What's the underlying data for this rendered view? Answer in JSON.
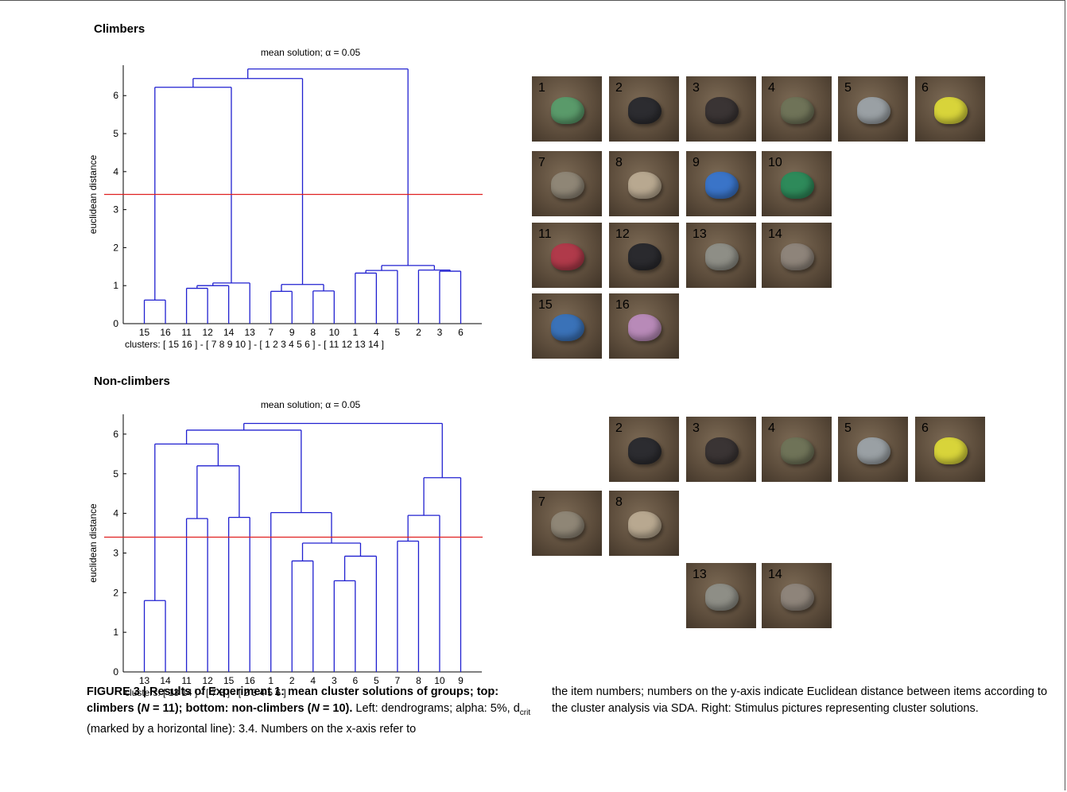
{
  "panels": [
    {
      "id": "climbers",
      "heading": "Climbers",
      "chart_data": {
        "type": "dendrogram",
        "title": "mean solution; α = 0.05",
        "ylabel": "euclidean distance",
        "ylim": [
          0,
          6.8
        ],
        "yticks": [
          0,
          1,
          2,
          3,
          4,
          5,
          6
        ],
        "threshold": 3.4,
        "threshold_color": "#e02020",
        "line_color": "#2020d0",
        "leaf_order": [
          "15",
          "16",
          "11",
          "12",
          "14",
          "13",
          "7",
          "9",
          "8",
          "10",
          "1",
          "4",
          "5",
          "2",
          "3",
          "6"
        ],
        "merges": [
          {
            "left": "15",
            "right": "16",
            "height": 0.62
          },
          {
            "left": "11",
            "right": "12",
            "height": 0.93
          },
          {
            "left": "(11,12)",
            "right": "14",
            "height": 1.0
          },
          {
            "left": "(11,12,14)",
            "right": "13",
            "height": 1.07
          },
          {
            "left": "7",
            "right": "9",
            "height": 0.85
          },
          {
            "left": "8",
            "right": "10",
            "height": 0.86
          },
          {
            "left": "(7,9)",
            "right": "(8,10)",
            "height": 1.03
          },
          {
            "left": "1",
            "right": "4",
            "height": 1.33
          },
          {
            "left": "(1,4)",
            "right": "5",
            "height": 1.4
          },
          {
            "left": "3",
            "right": "6",
            "height": 1.38
          },
          {
            "left": "2",
            "right": "(3,6)",
            "height": 1.41
          },
          {
            "left": "(1,4,5)",
            "right": "(2,3,6)",
            "height": 1.53
          },
          {
            "left": "(15,16)",
            "right": "(11,12,14,13)",
            "height": 6.22
          },
          {
            "left": "(15,16,11,12,14,13)",
            "right": "(7,9,8,10)",
            "height": 6.45
          },
          {
            "left": "(15..13,7..10)",
            "right": "(1..6)",
            "height": 6.7
          }
        ],
        "clusters_label": "clusters: [ 15  16 ]   -   [ 7   8   9  10 ]   -   [ 1  2  3  4  5  6 ]   -   [ 11  12  13  14 ]"
      }
    },
    {
      "id": "non-climbers",
      "heading": "Non-climbers",
      "chart_data": {
        "type": "dendrogram",
        "title": "mean solution; α = 0.05",
        "ylabel": "euclidean distance",
        "ylim": [
          0,
          6.5
        ],
        "yticks": [
          0,
          1,
          2,
          3,
          4,
          5,
          6
        ],
        "threshold": 3.4,
        "threshold_color": "#e02020",
        "line_color": "#2020d0",
        "leaf_order": [
          "13",
          "14",
          "11",
          "12",
          "15",
          "16",
          "1",
          "2",
          "4",
          "3",
          "6",
          "5",
          "7",
          "8",
          "10",
          "9"
        ],
        "merges": [
          {
            "left": "13",
            "right": "14",
            "height": 1.8
          },
          {
            "left": "11",
            "right": "12",
            "height": 3.87
          },
          {
            "left": "15",
            "right": "16",
            "height": 3.9
          },
          {
            "left": "(11,12)",
            "right": "(15,16)",
            "height": 5.2
          },
          {
            "left": "(13,14)",
            "right": "(11,12,15,16)",
            "height": 5.75
          },
          {
            "left": "2",
            "right": "4",
            "height": 2.8
          },
          {
            "left": "3",
            "right": "6",
            "height": 2.3
          },
          {
            "left": "(3,6)",
            "right": "5",
            "height": 2.92
          },
          {
            "left": "(2,4)",
            "right": "(3,6,5)",
            "height": 3.25
          },
          {
            "left": "1",
            "right": "(2,4,3,6,5)",
            "height": 4.02
          },
          {
            "left": "7",
            "right": "8",
            "height": 3.3
          },
          {
            "left": "(7,8)",
            "right": "10",
            "height": 3.95
          },
          {
            "left": "(7,8,10)",
            "right": "9",
            "height": 4.9
          },
          {
            "left": "(13..16)",
            "right": "(1..5)",
            "height": 6.1
          },
          {
            "left": "(13..5)",
            "right": "(7..9)",
            "height": 6.27
          }
        ],
        "clusters_label": "clusters: [ 13  14 ]   -   [ 7  8 ]   -   [ 2  3  4  5  6 ]"
      }
    }
  ],
  "stimuli_climbers": [
    {
      "num": "1",
      "hold_color": "#5a9a6a"
    },
    {
      "num": "2",
      "hold_color": "#2c2c30"
    },
    {
      "num": "3",
      "hold_color": "#3a3434"
    },
    {
      "num": "4",
      "hold_color": "#6f7358"
    },
    {
      "num": "5",
      "hold_color": "#9aa0a4"
    },
    {
      "num": "6",
      "hold_color": "#d8d43a"
    },
    {
      "num": "7",
      "hold_color": "#8f8676"
    },
    {
      "num": "8",
      "hold_color": "#b8a890"
    },
    {
      "num": "9",
      "hold_color": "#3a74c8"
    },
    {
      "num": "10",
      "hold_color": "#2e8a5a"
    },
    {
      "num": "11",
      "hold_color": "#b03a4a"
    },
    {
      "num": "12",
      "hold_color": "#2a2a2e"
    },
    {
      "num": "13",
      "hold_color": "#8e8e86"
    },
    {
      "num": "14",
      "hold_color": "#8e847a"
    },
    {
      "num": "15",
      "hold_color": "#3a72b8"
    },
    {
      "num": "16",
      "hold_color": "#b88ab8"
    }
  ],
  "stimuli_nonclimbers": [
    {
      "num": "2",
      "hold_color": "#2c2c30"
    },
    {
      "num": "3",
      "hold_color": "#3a3434"
    },
    {
      "num": "4",
      "hold_color": "#6f7358"
    },
    {
      "num": "5",
      "hold_color": "#9aa0a4"
    },
    {
      "num": "6",
      "hold_color": "#d8d43a"
    },
    {
      "num": "7",
      "hold_color": "#8f8676"
    },
    {
      "num": "8",
      "hold_color": "#b8a890"
    },
    {
      "num": "13",
      "hold_color": "#8e8e86"
    },
    {
      "num": "14",
      "hold_color": "#8e847a"
    }
  ],
  "caption": {
    "fig_label": "FIGURE 3 | Results of Experiment 1: mean cluster solutions of groups; top: climbers (",
    "n1_symbol": "N",
    "n1_rest": " = 11); bottom: non-climbers (",
    "n2_symbol": "N",
    "n2_rest": " = 10).",
    "text_part1": " Left: dendrograms; alpha: 5%, d",
    "dcrit_sub": "crit",
    "text_part2": " (marked by a horizontal line): 3.4. Numbers on the x-axis refer to",
    "col2": "the item numbers; numbers on the y-axis indicate Euclidean distance between items according to the cluster analysis via SDA. Right: Stimulus pictures representing cluster solutions."
  }
}
